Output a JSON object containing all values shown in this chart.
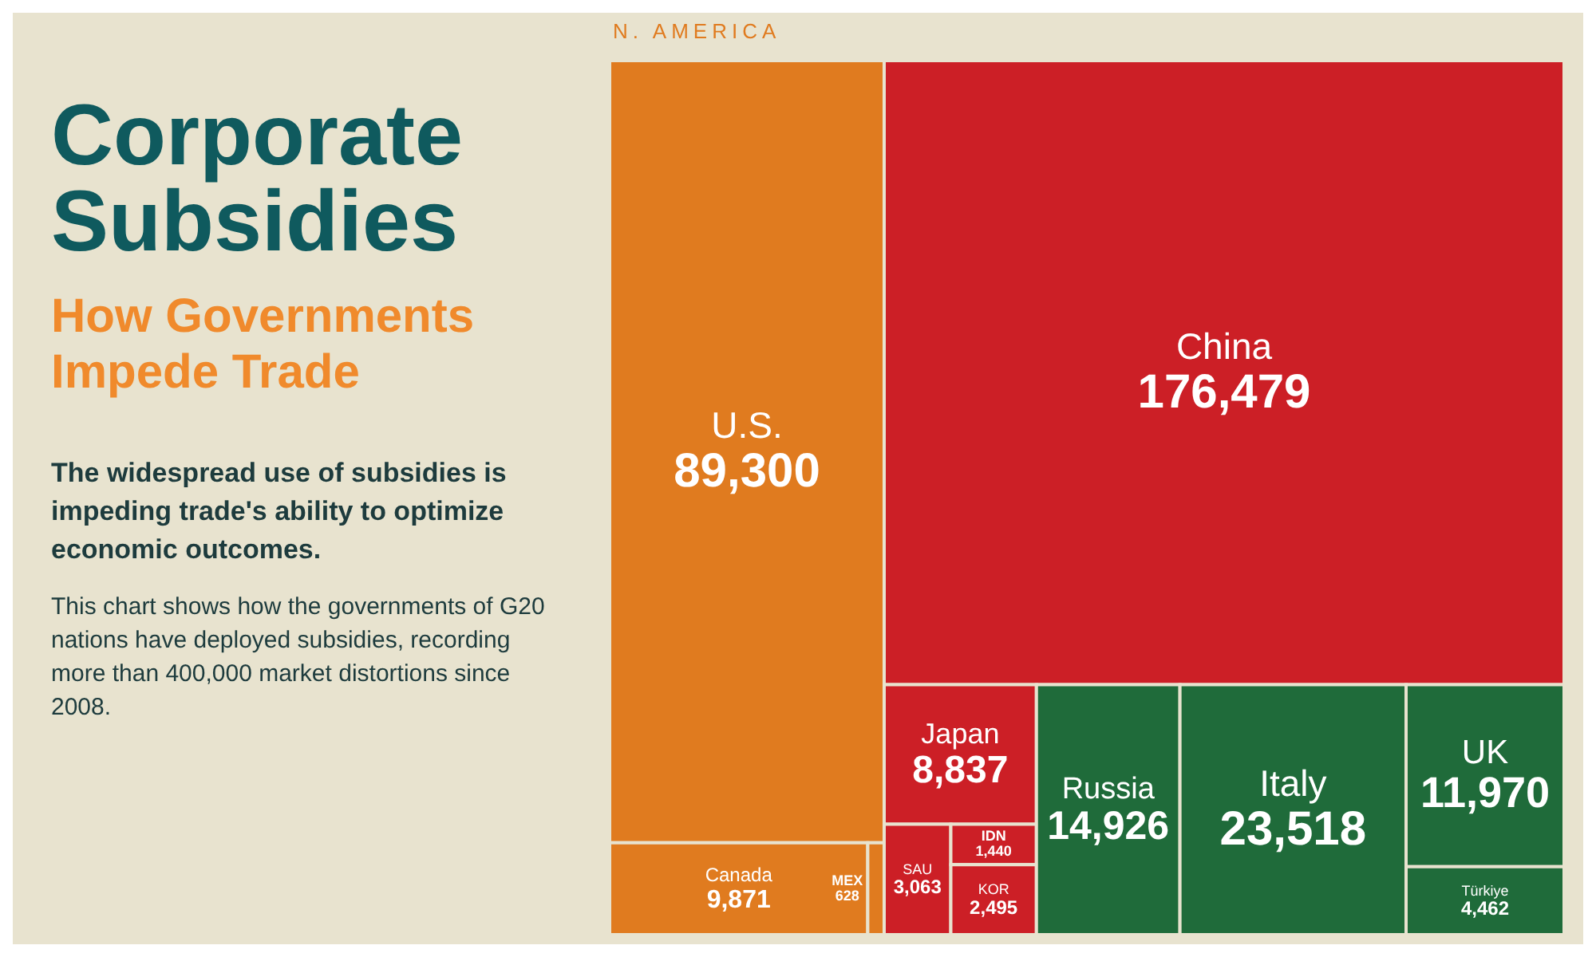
{
  "chart_data": {
    "type": "other",
    "title": "Corporate Subsidies",
    "subtitle": "How Governments Impede Trade",
    "annotations": [
      "N. AMERICA",
      "The widespread use of subsidies is impeding trade's ability to optimize economic outcomes.",
      "This chart shows how the governments of G20 nations have deployed subsidies, recording more than 400,000 market distortions since 2008."
    ],
    "categories": [
      "U.S.",
      "Canada",
      "MEX",
      "China",
      "Japan",
      "SAU",
      "IDN",
      "KOR",
      "Russia",
      "Italy",
      "UK",
      "Türkiye"
    ],
    "values": [
      89300,
      9871,
      628,
      176479,
      8837,
      3063,
      1440,
      2495,
      14926,
      23518,
      11970,
      4462
    ],
    "value_labels": [
      "89,300",
      "9,871",
      "628",
      "176,479",
      "8,837",
      "3,063",
      "1,440",
      "2,495",
      "14,926",
      "23,518",
      "11,970",
      "4,462"
    ],
    "colors": [
      "#e07b1f",
      "#e07b1f",
      "#e07b1f",
      "#cc1f26",
      "#cc1f26",
      "#cc1f26",
      "#cc1f26",
      "#cc1f26",
      "#1f6b3a",
      "#1f6b3a",
      "#1f6b3a",
      "#1f6b3a"
    ]
  }
}
